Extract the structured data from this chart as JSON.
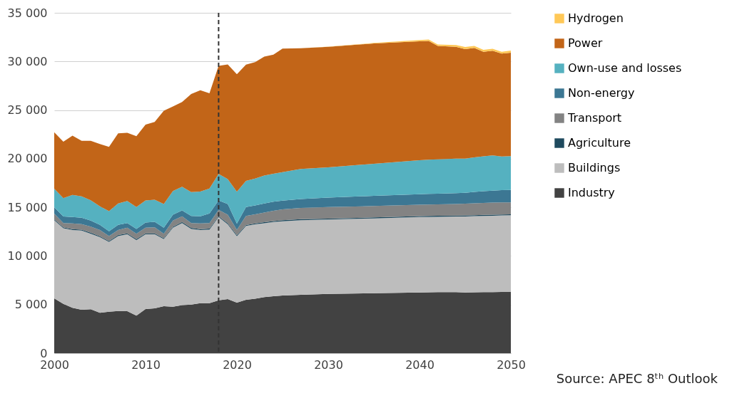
{
  "chart_data": {
    "type": "area",
    "stacked": true,
    "x": [
      2000,
      2001,
      2002,
      2003,
      2004,
      2005,
      2006,
      2007,
      2008,
      2009,
      2010,
      2011,
      2012,
      2013,
      2014,
      2015,
      2016,
      2017,
      2018,
      2019,
      2020,
      2021,
      2022,
      2023,
      2024,
      2025,
      2027,
      2030,
      2035,
      2040,
      2041,
      2042,
      2044,
      2045,
      2046,
      2047,
      2048,
      2049,
      2050
    ],
    "series": [
      {
        "name": "Industry",
        "color": "#424242",
        "values": [
          5640,
          5070,
          4660,
          4470,
          4520,
          4150,
          4270,
          4340,
          4320,
          3860,
          4540,
          4610,
          4830,
          4780,
          4950,
          5000,
          5150,
          5150,
          5440,
          5560,
          5200,
          5490,
          5600,
          5760,
          5860,
          5930,
          6000,
          6100,
          6170,
          6250,
          6260,
          6270,
          6280,
          6250,
          6260,
          6270,
          6280,
          6290,
          6300
        ]
      },
      {
        "name": "Buildings",
        "color": "#bdbdbd",
        "values": [
          8030,
          7780,
          8000,
          8140,
          7770,
          7780,
          7170,
          7710,
          7900,
          7770,
          7680,
          7610,
          6900,
          8120,
          8440,
          7780,
          7510,
          7560,
          8560,
          7700,
          6830,
          7590,
          7650,
          7610,
          7630,
          7640,
          7680,
          7640,
          7690,
          7750,
          7750,
          7760,
          7770,
          7810,
          7830,
          7850,
          7860,
          7870,
          7880
        ]
      },
      {
        "name": "Agriculture",
        "color": "#1f4a5e",
        "values": [
          100,
          100,
          100,
          100,
          100,
          100,
          100,
          100,
          100,
          100,
          100,
          100,
          100,
          100,
          100,
          100,
          100,
          100,
          100,
          100,
          100,
          100,
          100,
          100,
          100,
          100,
          100,
          100,
          100,
          100,
          100,
          100,
          100,
          100,
          100,
          100,
          100,
          100,
          100
        ]
      },
      {
        "name": "Transport",
        "color": "#838383",
        "values": [
          580,
          440,
          580,
          560,
          630,
          630,
          510,
          510,
          580,
          560,
          580,
          630,
          460,
          630,
          580,
          510,
          580,
          580,
          630,
          880,
          560,
          930,
          930,
          1000,
          1050,
          1120,
          1150,
          1190,
          1170,
          1170,
          1180,
          1180,
          1190,
          1210,
          1220,
          1230,
          1240,
          1250,
          1220
        ]
      },
      {
        "name": "Non-energy",
        "color": "#3c7793",
        "values": [
          660,
          660,
          660,
          660,
          610,
          540,
          490,
          540,
          490,
          490,
          540,
          560,
          610,
          610,
          610,
          730,
          730,
          980,
          980,
          1100,
          640,
          920,
          920,
          930,
          930,
          900,
          920,
          960,
          1050,
          1080,
          1090,
          1100,
          1110,
          1130,
          1170,
          1200,
          1230,
          1260,
          1290
        ]
      },
      {
        "name": "Own-use and losses",
        "color": "#55b1c0",
        "values": [
          1900,
          1900,
          2270,
          2200,
          2100,
          1900,
          2070,
          2200,
          2270,
          2240,
          2270,
          2270,
          2440,
          2440,
          2440,
          2440,
          2560,
          2560,
          2730,
          2560,
          3270,
          2690,
          2760,
          2860,
          2880,
          2930,
          3100,
          3120,
          3300,
          3490,
          3520,
          3530,
          3550,
          3510,
          3550,
          3600,
          3620,
          3450,
          3470
        ]
      },
      {
        "name": "Power",
        "color": "#c26518",
        "values": [
          5800,
          5800,
          6100,
          5700,
          6100,
          6400,
          6600,
          7200,
          7000,
          7300,
          7800,
          8000,
          9600,
          8700,
          8700,
          10100,
          10400,
          9800,
          11100,
          11800,
          12080,
          11960,
          11970,
          12240,
          12250,
          12700,
          12400,
          12390,
          12370,
          12230,
          12200,
          11660,
          11500,
          11250,
          11270,
          10750,
          10770,
          10580,
          10640
        ]
      },
      {
        "name": "Hydrogen",
        "color": "#ffc857",
        "values": [
          0,
          0,
          0,
          0,
          0,
          0,
          0,
          0,
          0,
          0,
          0,
          0,
          0,
          0,
          0,
          0,
          0,
          0,
          0,
          0,
          0,
          0,
          0,
          0,
          0,
          0,
          0,
          20,
          50,
          130,
          150,
          150,
          180,
          220,
          200,
          200,
          200,
          200,
          220
        ]
      }
    ],
    "xlim": [
      2000,
      2050
    ],
    "xticks": [
      2000,
      2010,
      2020,
      2030,
      2040,
      2050
    ],
    "ylim": [
      0,
      35000
    ],
    "yticks": [
      0,
      {
        "value": 5000,
        "label": "5 000"
      },
      {
        "value": 10000,
        "label": "10 000"
      },
      {
        "value": 15000,
        "label": "15 000"
      },
      {
        "value": 20000,
        "label": "20 000"
      },
      {
        "value": 25000,
        "label": "25 000"
      },
      {
        "value": 30000,
        "label": "30 000"
      },
      {
        "value": 35000,
        "label": "35 000"
      }
    ],
    "ref_lines": [
      {
        "axis": "x",
        "value": 2018,
        "color": "#333333",
        "line_style": "dashed"
      }
    ],
    "grid": "y",
    "legend": "right",
    "annotations": [
      "Source: APEC 8ᵗʰ Outlook"
    ]
  }
}
